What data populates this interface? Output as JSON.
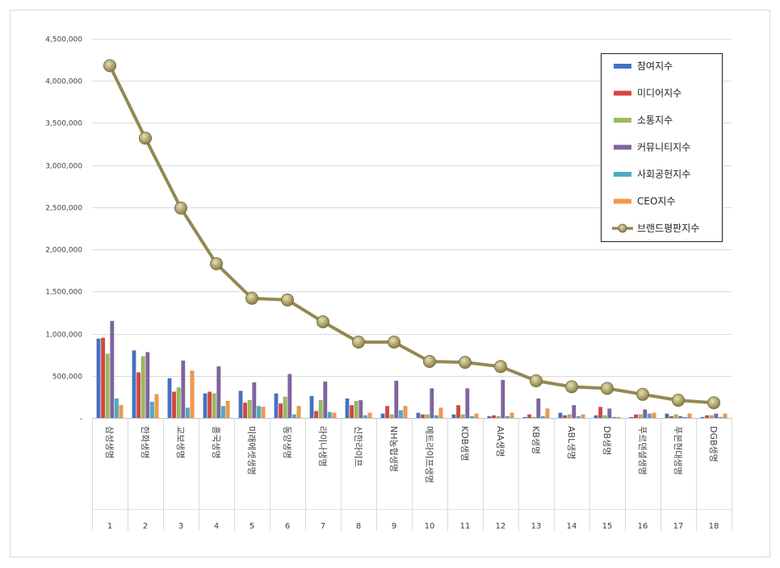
{
  "chart_data": {
    "type": "bar",
    "y_ticks": [
      "-",
      "500,000",
      "1,000,000",
      "1,500,000",
      "2,000,000",
      "2,500,000",
      "3,000,000",
      "3,500,000",
      "4,000,000",
      "4,500,000"
    ],
    "ylim": [
      0,
      4500000
    ],
    "grid": true,
    "legend_position": "top-right",
    "categories": [
      "삼성생명",
      "한화생명",
      "교보생명",
      "흥국생명",
      "미래에셋생명",
      "동양생명",
      "라이나생명",
      "신한라이프",
      "NH농협생명",
      "메트라이프생명",
      "KDB생명",
      "AIA생명",
      "KB생명",
      "ABL생명",
      "DB생명",
      "푸르덴셜생명",
      "푸본현대생명",
      "DGB생명"
    ],
    "index_labels": [
      "1",
      "2",
      "3",
      "4",
      "5",
      "6",
      "7",
      "8",
      "9",
      "10",
      "11",
      "12",
      "13",
      "14",
      "15",
      "16",
      "17",
      "18"
    ],
    "series": [
      {
        "name": "참여지수",
        "type": "bar",
        "color": "#4472C4",
        "values": [
          940000,
          800000,
          470000,
          290000,
          320000,
          290000,
          260000,
          230000,
          50000,
          60000,
          40000,
          20000,
          10000,
          60000,
          30000,
          10000,
          50000,
          10000
        ]
      },
      {
        "name": "미디어지수",
        "type": "bar",
        "color": "#D9443F",
        "values": [
          950000,
          540000,
          310000,
          310000,
          180000,
          170000,
          80000,
          150000,
          140000,
          40000,
          150000,
          30000,
          40000,
          30000,
          130000,
          40000,
          20000,
          30000
        ]
      },
      {
        "name": "소통지수",
        "type": "bar",
        "color": "#9BBB59",
        "values": [
          760000,
          730000,
          360000,
          290000,
          210000,
          250000,
          210000,
          200000,
          40000,
          40000,
          40000,
          20000,
          10000,
          40000,
          30000,
          40000,
          40000,
          30000
        ]
      },
      {
        "name": "커뮤니티지수",
        "type": "bar",
        "color": "#8064A2",
        "values": [
          1150000,
          780000,
          680000,
          610000,
          420000,
          520000,
          430000,
          210000,
          440000,
          350000,
          350000,
          450000,
          230000,
          150000,
          110000,
          100000,
          20000,
          50000
        ]
      },
      {
        "name": "사회공헌지수",
        "type": "bar",
        "color": "#4BACC6",
        "values": [
          230000,
          190000,
          120000,
          140000,
          140000,
          40000,
          70000,
          30000,
          90000,
          30000,
          20000,
          20000,
          20000,
          20000,
          10000,
          50000,
          10000,
          10000
        ]
      },
      {
        "name": "CEO지수",
        "type": "bar",
        "color": "#F79646",
        "values": [
          150000,
          280000,
          560000,
          200000,
          130000,
          140000,
          60000,
          60000,
          140000,
          120000,
          50000,
          60000,
          110000,
          40000,
          10000,
          60000,
          50000,
          50000
        ]
      },
      {
        "name": "브랜드평판지수",
        "type": "line",
        "color": "#938953",
        "values": [
          4180000,
          3320000,
          2490000,
          1830000,
          1420000,
          1400000,
          1140000,
          900000,
          900000,
          670000,
          660000,
          610000,
          440000,
          370000,
          350000,
          280000,
          210000,
          180000
        ]
      }
    ]
  }
}
